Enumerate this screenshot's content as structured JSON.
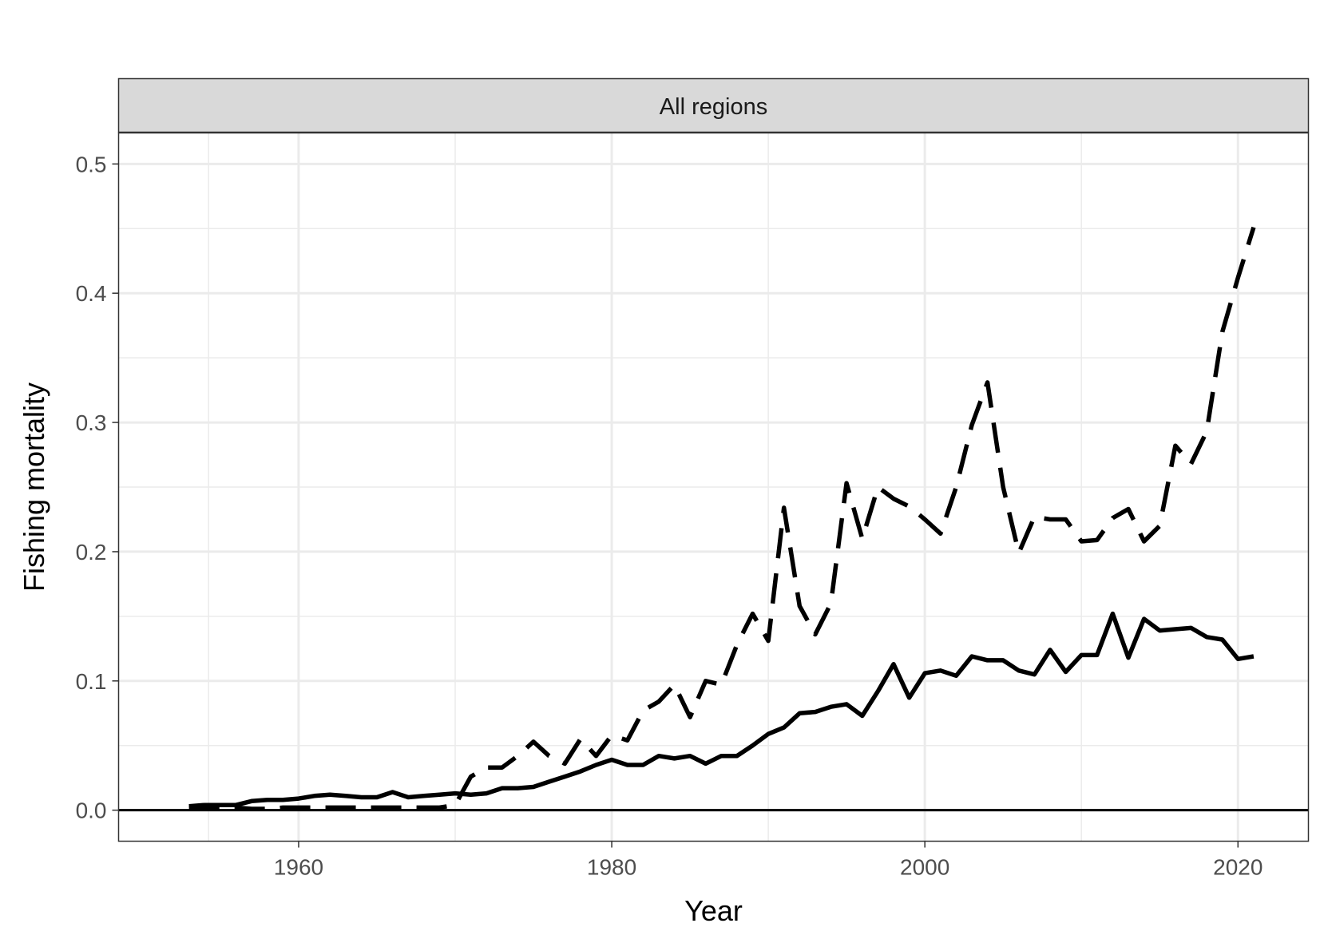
{
  "chart_data": {
    "type": "line",
    "facet_label": "All regions",
    "xlabel": "Year",
    "ylabel": "Fishing mortality",
    "xlim": [
      1948.5,
      2024.5
    ],
    "ylim": [
      -0.024,
      0.524
    ],
    "x_ticks": [
      1960,
      1980,
      2000,
      2020
    ],
    "x_tick_labels": [
      "1960",
      "1980",
      "2000",
      "2020"
    ],
    "y_ticks": [
      0.0,
      0.1,
      0.2,
      0.3,
      0.4,
      0.5
    ],
    "y_tick_labels": [
      "0.0",
      "0.1",
      "0.2",
      "0.3",
      "0.4",
      "0.5"
    ],
    "grid": true,
    "reference_line_y": 0,
    "x": [
      1953,
      1954,
      1955,
      1956,
      1957,
      1958,
      1959,
      1960,
      1961,
      1962,
      1963,
      1964,
      1965,
      1966,
      1967,
      1968,
      1969,
      1970,
      1971,
      1972,
      1973,
      1974,
      1975,
      1976,
      1977,
      1978,
      1979,
      1980,
      1981,
      1982,
      1983,
      1984,
      1985,
      1986,
      1987,
      1988,
      1989,
      1990,
      1991,
      1992,
      1993,
      1994,
      1995,
      1996,
      1997,
      1998,
      1999,
      2000,
      2001,
      2002,
      2003,
      2004,
      2005,
      2006,
      2007,
      2008,
      2009,
      2010,
      2011,
      2012,
      2013,
      2014,
      2015,
      2016,
      2017,
      2018,
      2019,
      2020,
      2021
    ],
    "series": [
      {
        "line_style": "solid",
        "values": [
          0.003,
          0.004,
          0.004,
          0.004,
          0.007,
          0.008,
          0.008,
          0.009,
          0.011,
          0.012,
          0.011,
          0.01,
          0.01,
          0.014,
          0.01,
          0.011,
          0.012,
          0.013,
          0.012,
          0.013,
          0.017,
          0.017,
          0.018,
          0.022,
          0.026,
          0.03,
          0.035,
          0.039,
          0.035,
          0.035,
          0.042,
          0.04,
          0.042,
          0.036,
          0.042,
          0.042,
          0.05,
          0.059,
          0.064,
          0.075,
          0.076,
          0.08,
          0.082,
          0.073,
          0.092,
          0.113,
          0.087,
          0.106,
          0.108,
          0.104,
          0.119,
          0.116,
          0.116,
          0.108,
          0.105,
          0.124,
          0.107,
          0.12,
          0.12,
          0.152,
          0.118,
          0.148,
          0.139,
          0.14,
          0.141,
          0.134,
          0.132,
          0.117,
          0.119
        ]
      },
      {
        "line_style": "dashed",
        "values": [
          0.002,
          0.002,
          0.002,
          0.002,
          0.001,
          0.001,
          0.002,
          0.002,
          0.002,
          0.002,
          0.002,
          0.002,
          0.002,
          0.002,
          0.002,
          0.002,
          0.002,
          0.004,
          0.026,
          0.033,
          0.033,
          0.042,
          0.053,
          0.042,
          0.036,
          0.055,
          0.042,
          0.058,
          0.054,
          0.077,
          0.084,
          0.097,
          0.072,
          0.1,
          0.097,
          0.128,
          0.152,
          0.131,
          0.234,
          0.158,
          0.136,
          0.16,
          0.253,
          0.21,
          0.25,
          0.241,
          0.235,
          0.225,
          0.214,
          0.25,
          0.298,
          0.331,
          0.25,
          0.199,
          0.227,
          0.225,
          0.225,
          0.208,
          0.209,
          0.226,
          0.233,
          0.208,
          0.22,
          0.282,
          0.268,
          0.293,
          0.37,
          0.412,
          0.451
        ]
      }
    ]
  }
}
